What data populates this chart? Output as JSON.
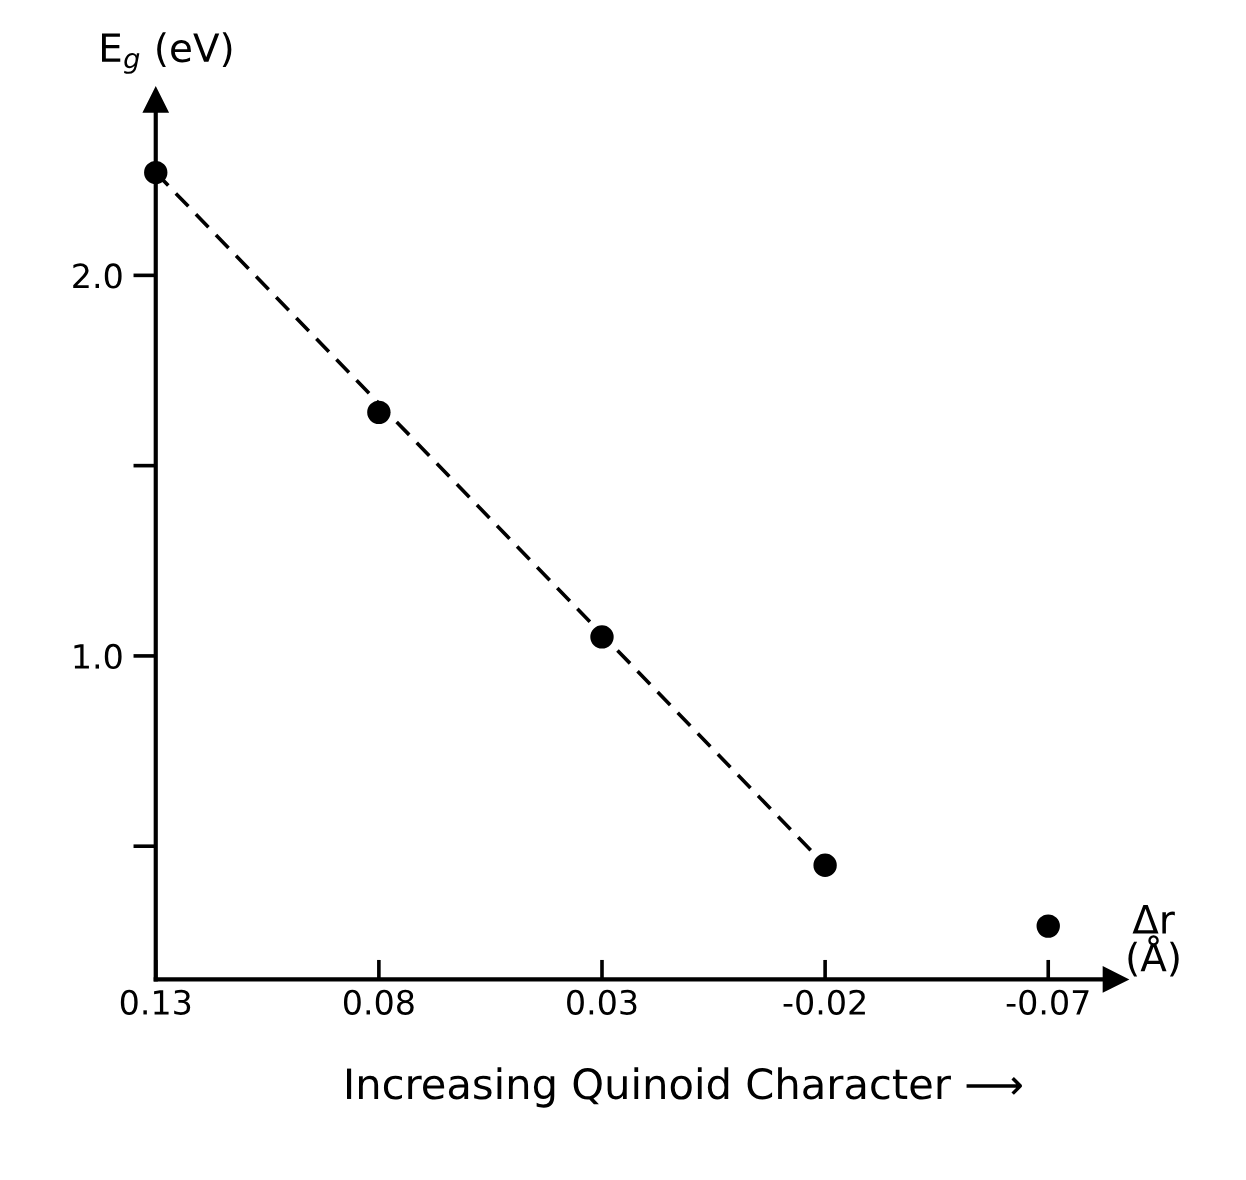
{
  "chart_data": {
    "type": "scatter",
    "xlabel": "Δr\n(Å)",
    "ylabel": "E$_{g}$ (eV)",
    "annotations": [
      "Increasing Quinoid Character ⟶"
    ],
    "series": [
      {
        "color": "#000000",
        "x": [
          0.13,
          0.08,
          0.03,
          -0.02,
          -0.07
        ],
        "values": [
          2.27,
          1.64,
          1.05,
          0.45,
          0.29
        ],
        "marker": "circle"
      },
      {
        "type": "line",
        "color": "#000000",
        "x": [
          0.13,
          -0.02
        ],
        "values": [
          2.27,
          0.45
        ],
        "line_style": "dashed"
      }
    ],
    "xlim": [
      0.13,
      -0.085
    ],
    "xticks": [
      0.13,
      0.08,
      0.03,
      -0.02,
      -0.07
    ],
    "ylim": [
      0.15,
      2.46
    ],
    "yticks": [
      {
        "value": 0.5,
        "label": null
      },
      {
        "value": 1.0,
        "label": "1.0"
      },
      {
        "value": 1.5,
        "label": null
      },
      {
        "value": 2.0,
        "label": "2.0"
      }
    ],
    "grid": false,
    "legend": false
  }
}
